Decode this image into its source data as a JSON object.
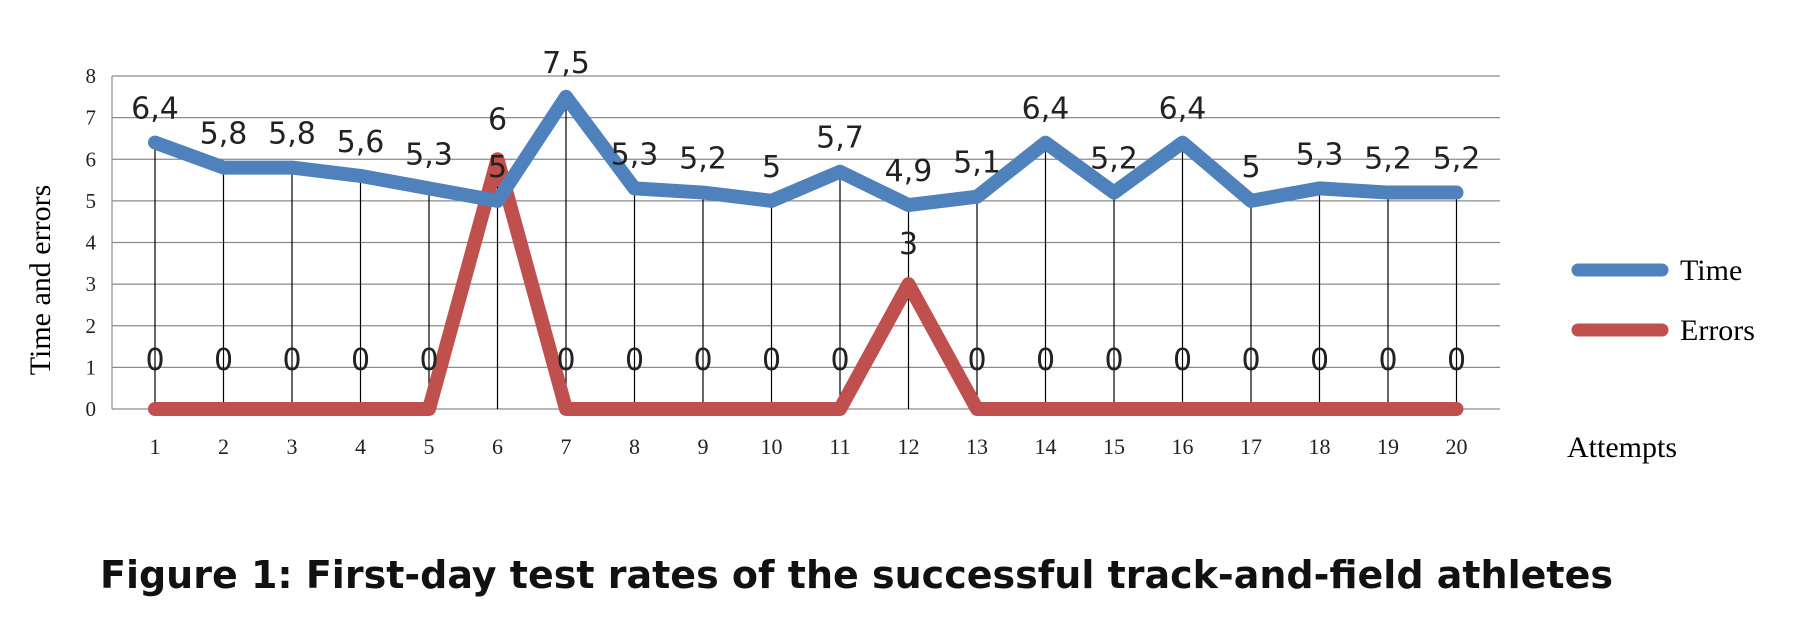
{
  "caption": "Figure 1: First-day test rates of the successful track-and-field athletes",
  "chart_data": {
    "type": "line",
    "ylabel": "Time and errors",
    "xlabel": "Attempts",
    "ylim": [
      0,
      8
    ],
    "yticks": [
      "0",
      "1",
      "2",
      "3",
      "4",
      "5",
      "6",
      "7",
      "8"
    ],
    "categories": [
      "1",
      "2",
      "3",
      "4",
      "5",
      "6",
      "7",
      "8",
      "9",
      "10",
      "11",
      "12",
      "13",
      "14",
      "15",
      "16",
      "17",
      "18",
      "19",
      "20"
    ],
    "grid": true,
    "legend_position": "right",
    "series": [
      {
        "name": "Time",
        "color": "#4F81BD",
        "values": [
          6.4,
          5.8,
          5.8,
          5.6,
          5.3,
          5,
          7.5,
          5.3,
          5.2,
          5,
          5.7,
          4.9,
          5.1,
          6.4,
          5.2,
          6.4,
          5,
          5.3,
          5.2,
          5.2
        ],
        "labels": [
          "6,4",
          "5,8",
          "5,8",
          "5,6",
          "5,3",
          "5",
          "7,5",
          "5,3",
          "5,2",
          "5",
          "5,7",
          "4,9",
          "5,1",
          "6,4",
          "5,2",
          "6,4",
          "5",
          "5,3",
          "5,2",
          "5,2"
        ]
      },
      {
        "name": "Errors",
        "color": "#C0504D",
        "values": [
          0,
          0,
          0,
          0,
          0,
          6,
          0,
          0,
          0,
          0,
          0,
          3,
          0,
          0,
          0,
          0,
          0,
          0,
          0,
          0
        ],
        "labels": [
          "0",
          "0",
          "0",
          "0",
          "0",
          "6",
          "0",
          "0",
          "0",
          "0",
          "0",
          "3",
          "0",
          "0",
          "0",
          "0",
          "0",
          "0",
          "0",
          "0"
        ]
      }
    ]
  }
}
